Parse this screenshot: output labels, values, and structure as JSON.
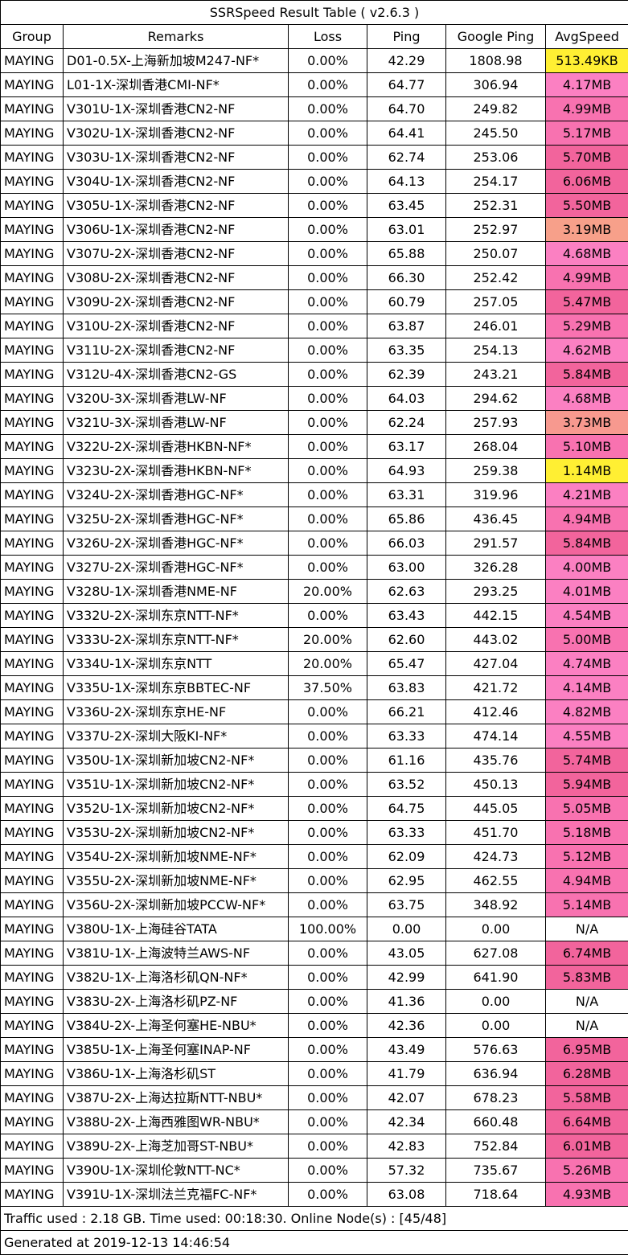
{
  "title": "SSRSpeed Result Table ( v2.6.3 )",
  "columns": [
    "Group",
    "Remarks",
    "Loss",
    "Ping",
    "Google Ping",
    "AvgSpeed"
  ],
  "speed_colors": {
    "yellow": "#ffef33",
    "salmon": "#f7a08a",
    "light_salmon": "#f7998f",
    "pink_light": "#fb80c2",
    "pink_mid": "#f872b0",
    "pink_dark": "#f2649c",
    "none": "#ffffff"
  },
  "rows": [
    {
      "group": "MAYING",
      "remarks": "D01-0.5X-上海新加坡M247-NF*",
      "loss": "0.00%",
      "ping": "42.29",
      "gping": "1808.98",
      "speed": "513.49KB",
      "color": "yellow"
    },
    {
      "group": "MAYING",
      "remarks": "L01-1X-深圳香港CMI-NF*",
      "loss": "0.00%",
      "ping": "64.77",
      "gping": "306.94",
      "speed": "4.17MB",
      "color": "pink_light"
    },
    {
      "group": "MAYING",
      "remarks": "V301U-1X-深圳香港CN2-NF",
      "loss": "0.00%",
      "ping": "64.70",
      "gping": "249.82",
      "speed": "4.99MB",
      "color": "pink_mid"
    },
    {
      "group": "MAYING",
      "remarks": "V302U-1X-深圳香港CN2-NF",
      "loss": "0.00%",
      "ping": "64.41",
      "gping": "245.50",
      "speed": "5.17MB",
      "color": "pink_mid"
    },
    {
      "group": "MAYING",
      "remarks": "V303U-1X-深圳香港CN2-NF",
      "loss": "0.00%",
      "ping": "62.74",
      "gping": "253.06",
      "speed": "5.70MB",
      "color": "pink_dark"
    },
    {
      "group": "MAYING",
      "remarks": "V304U-1X-深圳香港CN2-NF",
      "loss": "0.00%",
      "ping": "64.13",
      "gping": "254.17",
      "speed": "6.06MB",
      "color": "pink_dark"
    },
    {
      "group": "MAYING",
      "remarks": "V305U-1X-深圳香港CN2-NF",
      "loss": "0.00%",
      "ping": "63.45",
      "gping": "252.31",
      "speed": "5.50MB",
      "color": "pink_dark"
    },
    {
      "group": "MAYING",
      "remarks": "V306U-1X-深圳香港CN2-NF",
      "loss": "0.00%",
      "ping": "63.01",
      "gping": "252.97",
      "speed": "3.19MB",
      "color": "salmon"
    },
    {
      "group": "MAYING",
      "remarks": "V307U-2X-深圳香港CN2-NF",
      "loss": "0.00%",
      "ping": "65.88",
      "gping": "250.07",
      "speed": "4.68MB",
      "color": "pink_light"
    },
    {
      "group": "MAYING",
      "remarks": "V308U-2X-深圳香港CN2-NF",
      "loss": "0.00%",
      "ping": "66.30",
      "gping": "252.42",
      "speed": "4.99MB",
      "color": "pink_mid"
    },
    {
      "group": "MAYING",
      "remarks": "V309U-2X-深圳香港CN2-NF",
      "loss": "0.00%",
      "ping": "60.79",
      "gping": "257.05",
      "speed": "5.47MB",
      "color": "pink_dark"
    },
    {
      "group": "MAYING",
      "remarks": "V310U-2X-深圳香港CN2-NF",
      "loss": "0.00%",
      "ping": "63.87",
      "gping": "246.01",
      "speed": "5.29MB",
      "color": "pink_mid"
    },
    {
      "group": "MAYING",
      "remarks": "V311U-2X-深圳香港CN2-NF",
      "loss": "0.00%",
      "ping": "63.35",
      "gping": "254.13",
      "speed": "4.62MB",
      "color": "pink_light"
    },
    {
      "group": "MAYING",
      "remarks": "V312U-4X-深圳香港CN2-GS",
      "loss": "0.00%",
      "ping": "62.39",
      "gping": "243.21",
      "speed": "5.84MB",
      "color": "pink_dark"
    },
    {
      "group": "MAYING",
      "remarks": "V320U-3X-深圳香港LW-NF",
      "loss": "0.00%",
      "ping": "64.03",
      "gping": "294.62",
      "speed": "4.68MB",
      "color": "pink_light"
    },
    {
      "group": "MAYING",
      "remarks": "V321U-3X-深圳香港LW-NF",
      "loss": "0.00%",
      "ping": "62.24",
      "gping": "257.93",
      "speed": "3.73MB",
      "color": "light_salmon"
    },
    {
      "group": "MAYING",
      "remarks": "V322U-2X-深圳香港HKBN-NF*",
      "loss": "0.00%",
      "ping": "63.17",
      "gping": "268.04",
      "speed": "5.10MB",
      "color": "pink_mid"
    },
    {
      "group": "MAYING",
      "remarks": "V323U-2X-深圳香港HKBN-NF*",
      "loss": "0.00%",
      "ping": "64.93",
      "gping": "259.38",
      "speed": "1.14MB",
      "color": "yellow"
    },
    {
      "group": "MAYING",
      "remarks": "V324U-2X-深圳香港HGC-NF*",
      "loss": "0.00%",
      "ping": "63.31",
      "gping": "319.96",
      "speed": "4.21MB",
      "color": "pink_light"
    },
    {
      "group": "MAYING",
      "remarks": "V325U-2X-深圳香港HGC-NF*",
      "loss": "0.00%",
      "ping": "65.86",
      "gping": "436.45",
      "speed": "4.94MB",
      "color": "pink_mid"
    },
    {
      "group": "MAYING",
      "remarks": "V326U-2X-深圳香港HGC-NF*",
      "loss": "0.00%",
      "ping": "66.03",
      "gping": "291.57",
      "speed": "5.84MB",
      "color": "pink_dark"
    },
    {
      "group": "MAYING",
      "remarks": "V327U-2X-深圳香港HGC-NF*",
      "loss": "0.00%",
      "ping": "63.00",
      "gping": "326.28",
      "speed": "4.00MB",
      "color": "pink_light"
    },
    {
      "group": "MAYING",
      "remarks": "V328U-1X-深圳香港NME-NF",
      "loss": "20.00%",
      "ping": "62.63",
      "gping": "293.25",
      "speed": "4.01MB",
      "color": "pink_light"
    },
    {
      "group": "MAYING",
      "remarks": "V332U-2X-深圳东京NTT-NF*",
      "loss": "0.00%",
      "ping": "63.43",
      "gping": "442.15",
      "speed": "4.54MB",
      "color": "pink_light"
    },
    {
      "group": "MAYING",
      "remarks": "V333U-2X-深圳东京NTT-NF*",
      "loss": "20.00%",
      "ping": "62.60",
      "gping": "443.02",
      "speed": "5.00MB",
      "color": "pink_mid"
    },
    {
      "group": "MAYING",
      "remarks": "V334U-1X-深圳东京NTT",
      "loss": "20.00%",
      "ping": "65.47",
      "gping": "427.04",
      "speed": "4.74MB",
      "color": "pink_light"
    },
    {
      "group": "MAYING",
      "remarks": "V335U-1X-深圳东京BBTEC-NF",
      "loss": "37.50%",
      "ping": "63.83",
      "gping": "421.72",
      "speed": "4.14MB",
      "color": "pink_light"
    },
    {
      "group": "MAYING",
      "remarks": "V336U-2X-深圳东京HE-NF",
      "loss": "0.00%",
      "ping": "66.21",
      "gping": "412.46",
      "speed": "4.82MB",
      "color": "pink_light"
    },
    {
      "group": "MAYING",
      "remarks": "V337U-2X-深圳大阪KI-NF*",
      "loss": "0.00%",
      "ping": "63.33",
      "gping": "474.14",
      "speed": "4.55MB",
      "color": "pink_light"
    },
    {
      "group": "MAYING",
      "remarks": "V350U-1X-深圳新加坡CN2-NF*",
      "loss": "0.00%",
      "ping": "61.16",
      "gping": "435.76",
      "speed": "5.74MB",
      "color": "pink_dark"
    },
    {
      "group": "MAYING",
      "remarks": "V351U-1X-深圳新加坡CN2-NF*",
      "loss": "0.00%",
      "ping": "63.52",
      "gping": "450.13",
      "speed": "5.94MB",
      "color": "pink_dark"
    },
    {
      "group": "MAYING",
      "remarks": "V352U-1X-深圳新加坡CN2-NF*",
      "loss": "0.00%",
      "ping": "64.75",
      "gping": "445.05",
      "speed": "5.05MB",
      "color": "pink_mid"
    },
    {
      "group": "MAYING",
      "remarks": "V353U-2X-深圳新加坡CN2-NF*",
      "loss": "0.00%",
      "ping": "63.33",
      "gping": "451.70",
      "speed": "5.18MB",
      "color": "pink_mid"
    },
    {
      "group": "MAYING",
      "remarks": "V354U-2X-深圳新加坡NME-NF*",
      "loss": "0.00%",
      "ping": "62.09",
      "gping": "424.73",
      "speed": "5.12MB",
      "color": "pink_mid"
    },
    {
      "group": "MAYING",
      "remarks": "V355U-2X-深圳新加坡NME-NF*",
      "loss": "0.00%",
      "ping": "62.95",
      "gping": "462.55",
      "speed": "4.94MB",
      "color": "pink_mid"
    },
    {
      "group": "MAYING",
      "remarks": "V356U-2X-深圳新加坡PCCW-NF*",
      "loss": "0.00%",
      "ping": "63.75",
      "gping": "348.92",
      "speed": "5.14MB",
      "color": "pink_mid"
    },
    {
      "group": "MAYING",
      "remarks": "V380U-1X-上海硅谷TATA",
      "loss": "100.00%",
      "ping": "0.00",
      "gping": "0.00",
      "speed": "N/A",
      "color": "none"
    },
    {
      "group": "MAYING",
      "remarks": "V381U-1X-上海波特兰AWS-NF",
      "loss": "0.00%",
      "ping": "43.05",
      "gping": "627.08",
      "speed": "6.74MB",
      "color": "pink_dark"
    },
    {
      "group": "MAYING",
      "remarks": "V382U-1X-上海洛杉矶QN-NF*",
      "loss": "0.00%",
      "ping": "42.99",
      "gping": "641.90",
      "speed": "5.83MB",
      "color": "pink_dark"
    },
    {
      "group": "MAYING",
      "remarks": "V383U-2X-上海洛杉矶PZ-NF",
      "loss": "0.00%",
      "ping": "41.36",
      "gping": "0.00",
      "speed": "N/A",
      "color": "none"
    },
    {
      "group": "MAYING",
      "remarks": "V384U-2X-上海圣何塞HE-NBU*",
      "loss": "0.00%",
      "ping": "42.36",
      "gping": "0.00",
      "speed": "N/A",
      "color": "none"
    },
    {
      "group": "MAYING",
      "remarks": "V385U-1X-上海圣何塞INAP-NF",
      "loss": "0.00%",
      "ping": "43.49",
      "gping": "576.63",
      "speed": "6.95MB",
      "color": "pink_dark"
    },
    {
      "group": "MAYING",
      "remarks": "V386U-1X-上海洛杉矶ST",
      "loss": "0.00%",
      "ping": "41.79",
      "gping": "636.94",
      "speed": "6.28MB",
      "color": "pink_dark"
    },
    {
      "group": "MAYING",
      "remarks": "V387U-2X-上海达拉斯NTT-NBU*",
      "loss": "0.00%",
      "ping": "42.07",
      "gping": "678.23",
      "speed": "5.58MB",
      "color": "pink_dark"
    },
    {
      "group": "MAYING",
      "remarks": "V388U-2X-上海西雅图WR-NBU*",
      "loss": "0.00%",
      "ping": "42.34",
      "gping": "660.48",
      "speed": "6.64MB",
      "color": "pink_dark"
    },
    {
      "group": "MAYING",
      "remarks": "V389U-2X-上海芝加哥ST-NBU*",
      "loss": "0.00%",
      "ping": "42.83",
      "gping": "752.84",
      "speed": "6.01MB",
      "color": "pink_dark"
    },
    {
      "group": "MAYING",
      "remarks": "V390U-1X-深圳伦敦NTT-NC*",
      "loss": "0.00%",
      "ping": "57.32",
      "gping": "735.67",
      "speed": "5.26MB",
      "color": "pink_mid"
    },
    {
      "group": "MAYING",
      "remarks": "V391U-1X-深圳法兰克福FC-NF*",
      "loss": "0.00%",
      "ping": "63.08",
      "gping": "718.64",
      "speed": "4.93MB",
      "color": "pink_mid"
    }
  ],
  "footer": {
    "traffic": "Traffic used : 2.18 GB. Time used: 00:18:30. Online Node(s) : [45/48]",
    "generated": "Generated at 2019-12-13 14:46:54"
  }
}
